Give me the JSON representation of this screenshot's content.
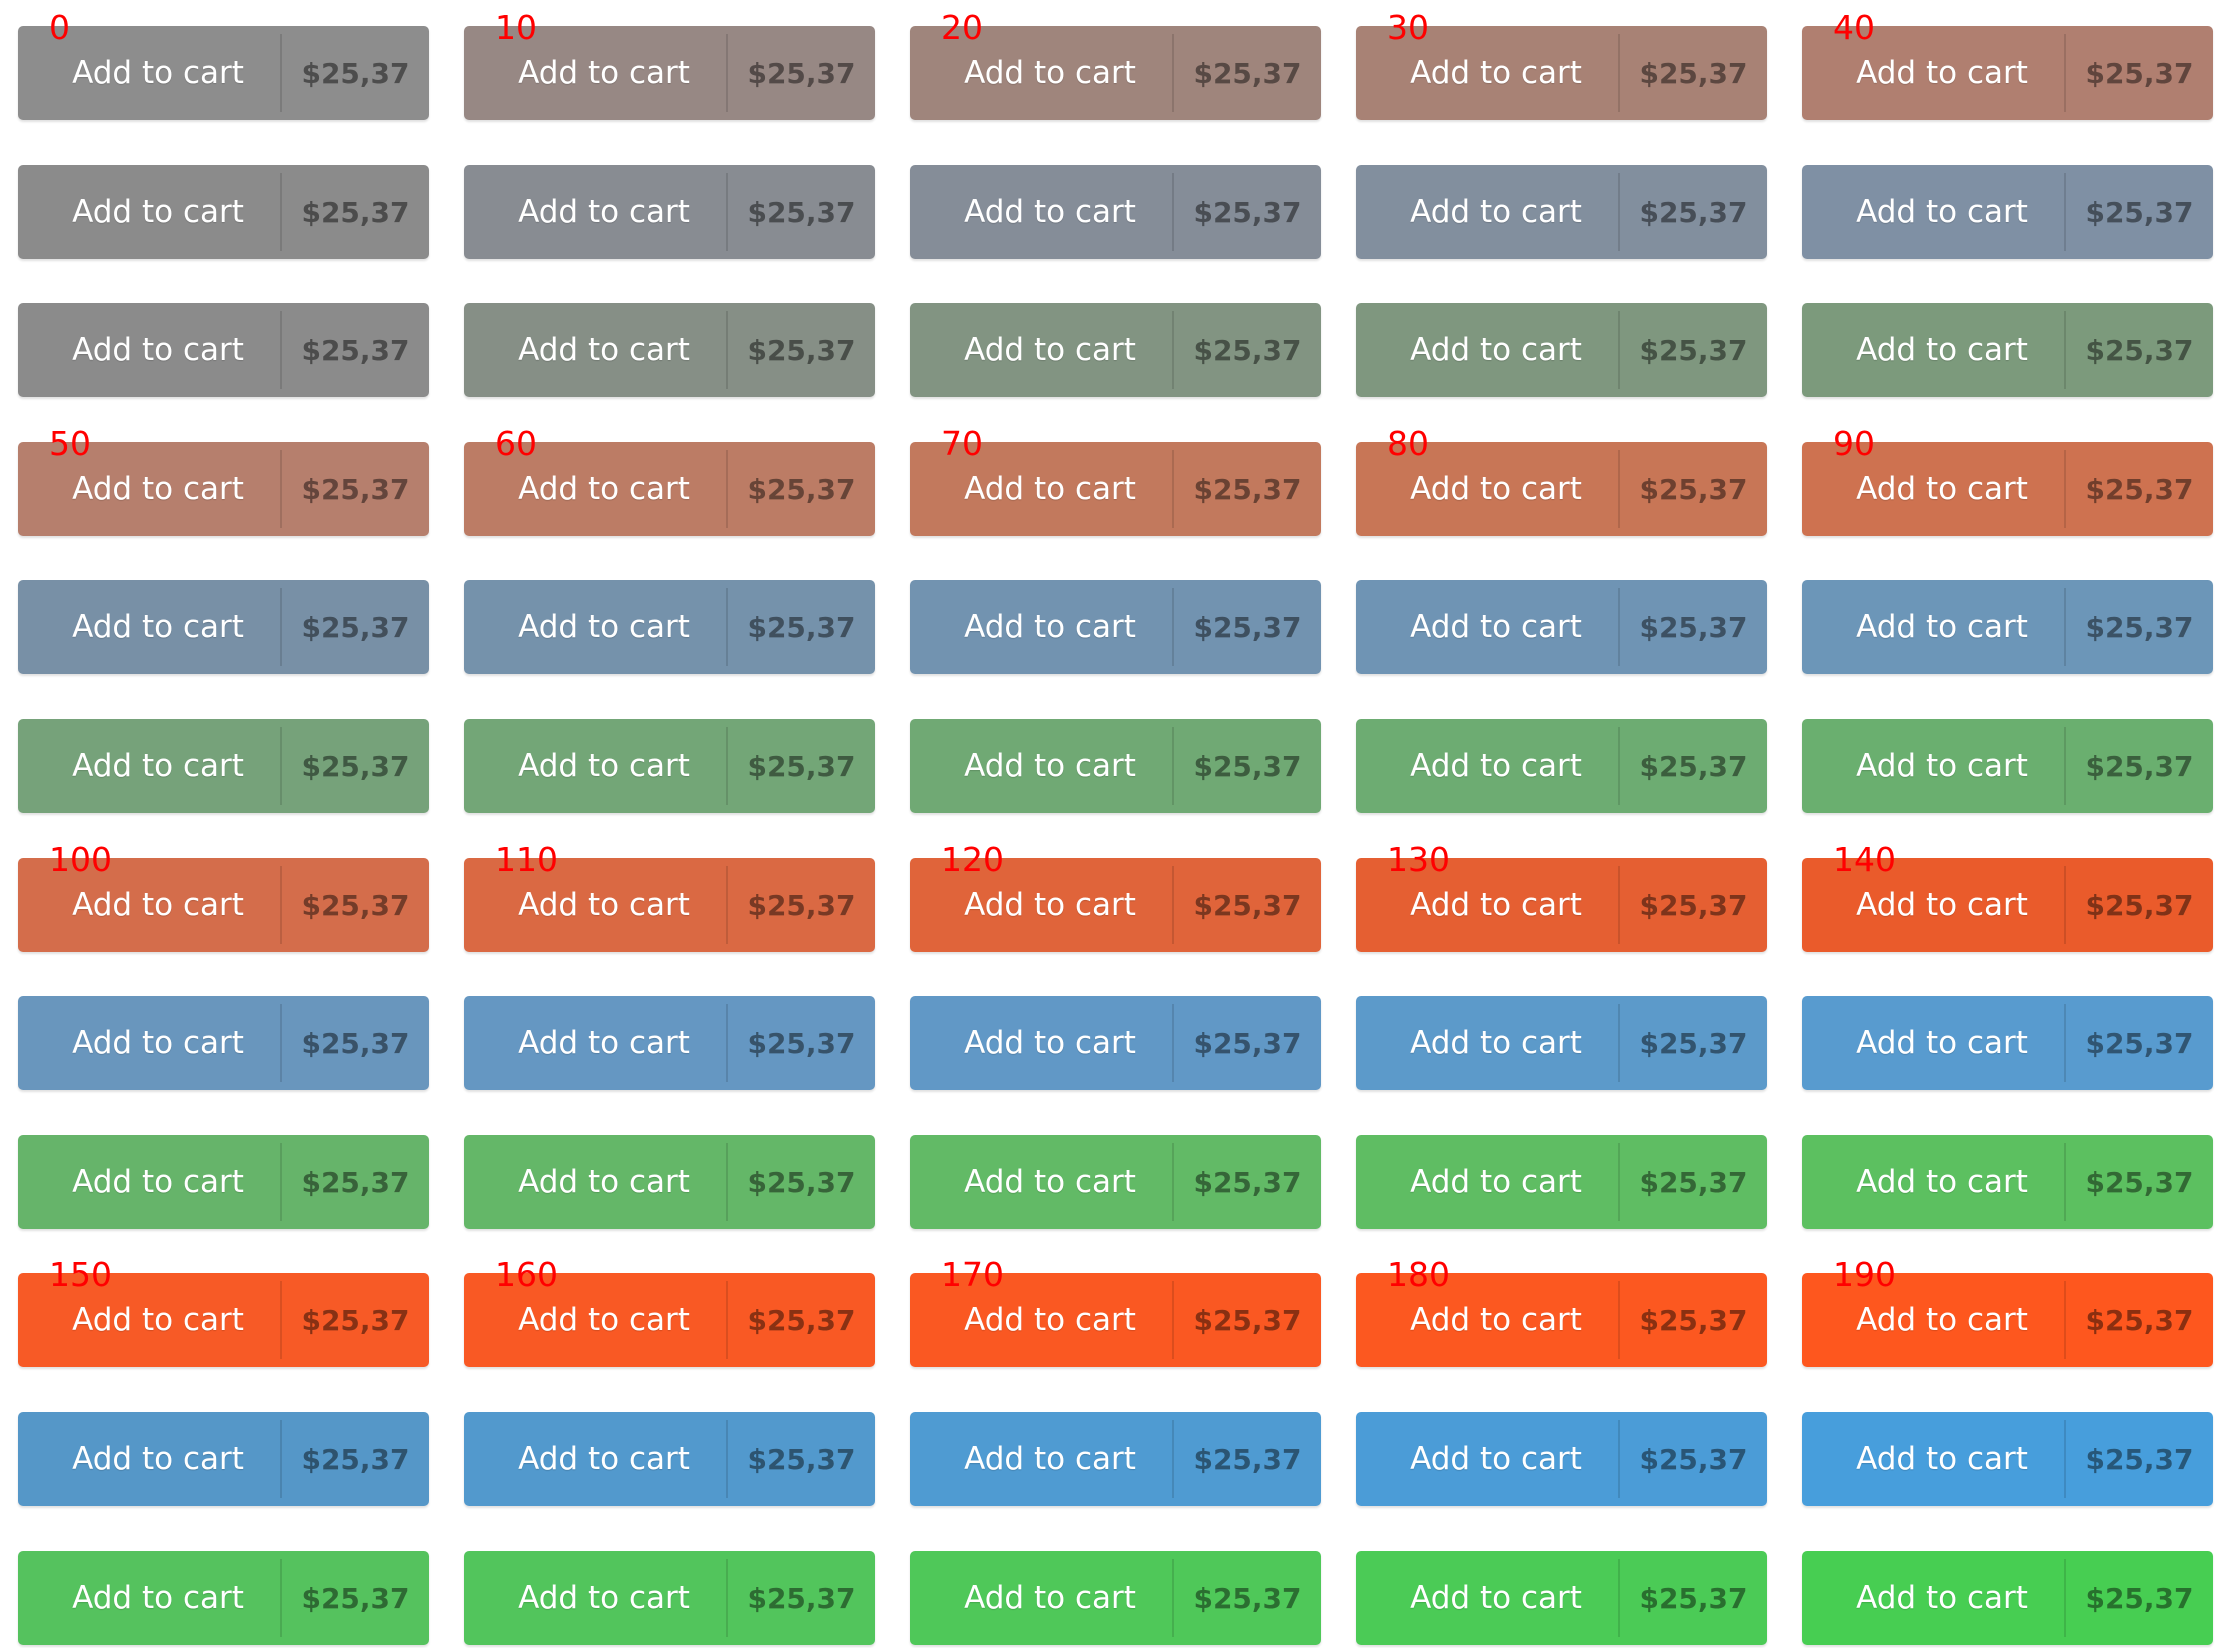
{
  "rows": [
    {
      "buttons": [
        {
          "tag": "0",
          "label": "Add to cart",
          "price": "$25,37",
          "color": "#8d8d8d"
        },
        {
          "tag": "10",
          "label": "Add to cart",
          "price": "$25,37",
          "color": "#978884"
        },
        {
          "tag": "20",
          "label": "Add to cart",
          "price": "$25,37",
          "color": "#9f857c"
        },
        {
          "tag": "30",
          "label": "Add to cart",
          "price": "$25,37",
          "color": "#a88275"
        },
        {
          "tag": "40",
          "label": "Add to cart",
          "price": "$25,37",
          "color": "#b07f70"
        }
      ]
    },
    {
      "buttons": [
        {
          "label": "Add to cart",
          "price": "$25,37",
          "color": "#8b8b8b"
        },
        {
          "label": "Add to cart",
          "price": "$25,37",
          "color": "#888c92"
        },
        {
          "label": "Add to cart",
          "price": "$25,37",
          "color": "#858d98"
        },
        {
          "label": "Add to cart",
          "price": "$25,37",
          "color": "#828f9e"
        },
        {
          "label": "Add to cart",
          "price": "$25,37",
          "color": "#7f90a4"
        }
      ]
    },
    {
      "buttons": [
        {
          "label": "Add to cart",
          "price": "$25,37",
          "color": "#8b8b8b"
        },
        {
          "label": "Add to cart",
          "price": "$25,37",
          "color": "#868f86"
        },
        {
          "label": "Add to cart",
          "price": "$25,37",
          "color": "#829482"
        },
        {
          "label": "Add to cart",
          "price": "$25,37",
          "color": "#7f977f"
        },
        {
          "label": "Add to cart",
          "price": "$25,37",
          "color": "#7c9a7c"
        }
      ]
    },
    {
      "buttons": [
        {
          "tag": "50",
          "label": "Add to cart",
          "price": "$25,37",
          "color": "#b67f6d"
        },
        {
          "tag": "60",
          "label": "Add to cart",
          "price": "$25,37",
          "color": "#bc7c65"
        },
        {
          "tag": "70",
          "label": "Add to cart",
          "price": "$25,37",
          "color": "#c2795d"
        },
        {
          "tag": "80",
          "label": "Add to cart",
          "price": "$25,37",
          "color": "#c87656"
        },
        {
          "tag": "90",
          "label": "Add to cart",
          "price": "$25,37",
          "color": "#ce7250"
        }
      ]
    },
    {
      "buttons": [
        {
          "label": "Add to cart",
          "price": "$25,37",
          "color": "#7890a6"
        },
        {
          "label": "Add to cart",
          "price": "$25,37",
          "color": "#7592ab"
        },
        {
          "label": "Add to cart",
          "price": "$25,37",
          "color": "#7293b0"
        },
        {
          "label": "Add to cart",
          "price": "$25,37",
          "color": "#6f94b4"
        },
        {
          "label": "Add to cart",
          "price": "$25,37",
          "color": "#6c96b8"
        }
      ]
    },
    {
      "buttons": [
        {
          "label": "Add to cart",
          "price": "$25,37",
          "color": "#76a27a"
        },
        {
          "label": "Add to cart",
          "price": "$25,37",
          "color": "#73a677"
        },
        {
          "label": "Add to cart",
          "price": "$25,37",
          "color": "#70a974"
        },
        {
          "label": "Add to cart",
          "price": "$25,37",
          "color": "#6dac72"
        },
        {
          "label": "Add to cart",
          "price": "$25,37",
          "color": "#6aaf6f"
        }
      ]
    },
    {
      "buttons": [
        {
          "tag": "100",
          "label": "Add to cart",
          "price": "$25,37",
          "color": "#d46d4b"
        },
        {
          "tag": "110",
          "label": "Add to cart",
          "price": "$25,37",
          "color": "#da6943"
        },
        {
          "tag": "120",
          "label": "Add to cart",
          "price": "$25,37",
          "color": "#e0643a"
        },
        {
          "tag": "130",
          "label": "Add to cart",
          "price": "$25,37",
          "color": "#e55f32"
        },
        {
          "tag": "140",
          "label": "Add to cart",
          "price": "$25,37",
          "color": "#ea5b2b"
        }
      ]
    },
    {
      "buttons": [
        {
          "label": "Add to cart",
          "price": "$25,37",
          "color": "#6996bd"
        },
        {
          "label": "Add to cart",
          "price": "$25,37",
          "color": "#6597c2"
        },
        {
          "label": "Add to cart",
          "price": "$25,37",
          "color": "#6198c6"
        },
        {
          "label": "Add to cart",
          "price": "$25,37",
          "color": "#5c9aca"
        },
        {
          "label": "Add to cart",
          "price": "$25,37",
          "color": "#589bcf"
        }
      ]
    },
    {
      "buttons": [
        {
          "label": "Add to cart",
          "price": "$25,37",
          "color": "#66b46a"
        },
        {
          "label": "Add to cart",
          "price": "$25,37",
          "color": "#64b768"
        },
        {
          "label": "Add to cart",
          "price": "$25,37",
          "color": "#62ba66"
        },
        {
          "label": "Add to cart",
          "price": "$25,37",
          "color": "#5fbd63"
        },
        {
          "label": "Add to cart",
          "price": "$25,37",
          "color": "#5cc060"
        }
      ]
    },
    {
      "buttons": [
        {
          "tag": "150",
          "label": "Add to cart",
          "price": "$25,37",
          "color": "#f75a26"
        },
        {
          "tag": "160",
          "label": "Add to cart",
          "price": "$25,37",
          "color": "#f95924"
        },
        {
          "tag": "170",
          "label": "Add to cart",
          "price": "$25,37",
          "color": "#fa5822"
        },
        {
          "tag": "180",
          "label": "Add to cart",
          "price": "$25,37",
          "color": "#fc5820"
        },
        {
          "tag": "190",
          "label": "Add to cart",
          "price": "$25,37",
          "color": "#fe571e"
        }
      ]
    },
    {
      "buttons": [
        {
          "label": "Add to cart",
          "price": "$25,37",
          "color": "#5597c8"
        },
        {
          "label": "Add to cart",
          "price": "$25,37",
          "color": "#5299cd"
        },
        {
          "label": "Add to cart",
          "price": "$25,37",
          "color": "#4f9bd2"
        },
        {
          "label": "Add to cart",
          "price": "$25,37",
          "color": "#4b9cd7"
        },
        {
          "label": "Add to cart",
          "price": "$25,37",
          "color": "#479edc"
        }
      ]
    },
    {
      "buttons": [
        {
          "label": "Add to cart",
          "price": "$25,37",
          "color": "#55c25e"
        },
        {
          "label": "Add to cart",
          "price": "$25,37",
          "color": "#52c55c"
        },
        {
          "label": "Add to cart",
          "price": "$25,37",
          "color": "#4fc859"
        },
        {
          "label": "Add to cart",
          "price": "$25,37",
          "color": "#4bcb56"
        },
        {
          "label": "Add to cart",
          "price": "$25,37",
          "color": "#47ce52"
        }
      ]
    }
  ]
}
